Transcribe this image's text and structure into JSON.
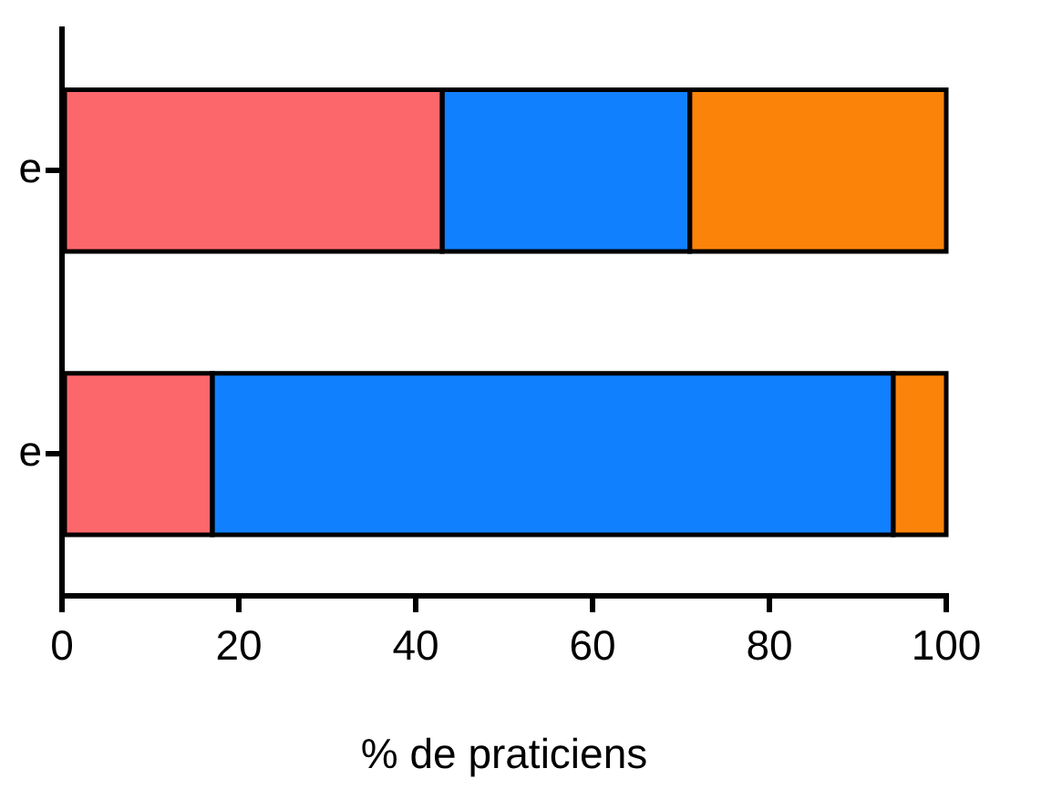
{
  "chart_data": {
    "type": "bar",
    "orientation": "horizontal",
    "stacked": true,
    "xlabel": "% de praticiens",
    "categories": [
      "e",
      "e"
    ],
    "series": [
      {
        "color": "#fc676b",
        "values": [
          43,
          17
        ]
      },
      {
        "color": "#1180ff",
        "values": [
          28,
          77
        ]
      },
      {
        "color": "#fc830a",
        "values": [
          29,
          6
        ]
      }
    ],
    "xlim": [
      0,
      100
    ],
    "xticks": [
      0,
      20,
      40,
      60,
      80,
      100
    ],
    "grid": false,
    "legend": false
  }
}
